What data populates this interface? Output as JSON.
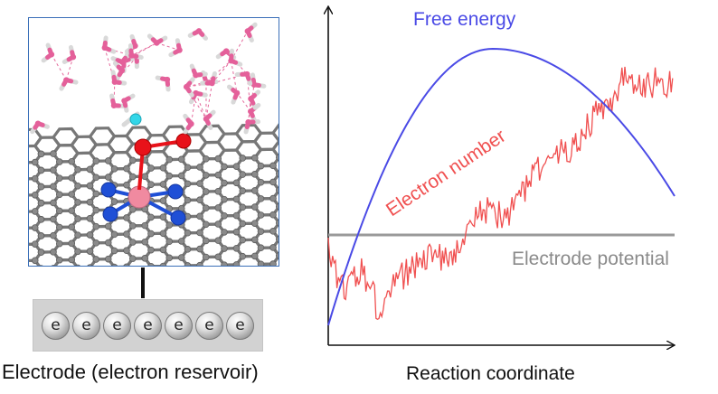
{
  "left_panel": {
    "electrode_label": "Electrode (electron reservoir)",
    "electron_symbol": "e",
    "electron_count": 7,
    "colors": {
      "frame": "#3a6fb8",
      "graphene": "#777777",
      "nitrogen": "#1f4fd6",
      "metal": "#f08aa0",
      "oxygen_adsorbed": "#e8121a",
      "hydrogen_highlight": "#33d6e8",
      "water_oxygen": "#e4609a",
      "water_hydrogen": "#ffffff"
    }
  },
  "right_panel": {
    "x_axis_label": "Reaction coordinate",
    "free_energy_label": "Free energy",
    "electron_number_label": "Electron number",
    "electrode_potential_label": "Electrode potential",
    "colors": {
      "free_energy": "#4a4ae6",
      "electron_number": "#f05050",
      "electrode_potential": "#9a9a9a",
      "axes": "#111111"
    }
  }
}
